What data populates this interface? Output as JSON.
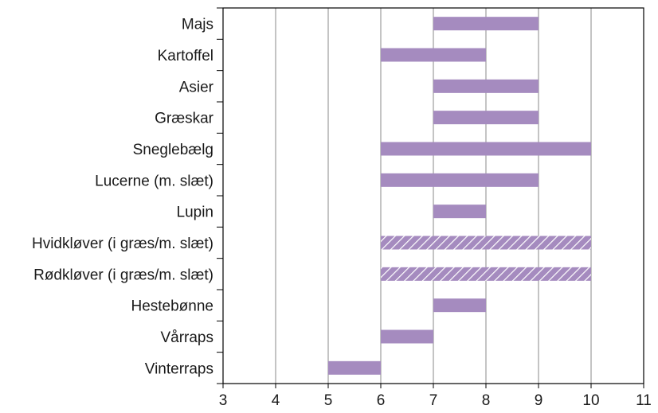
{
  "chart_data": {
    "type": "bar",
    "orientation": "horizontal",
    "title": "",
    "xlabel": "",
    "ylabel": "",
    "xlim": [
      3,
      11
    ],
    "x_ticks": [
      "3",
      "4",
      "5",
      "6",
      "7",
      "8",
      "9",
      "10",
      "11"
    ],
    "grid": "vertical",
    "legend": "none",
    "bar_color": "#a58bbf",
    "categories": [
      "Majs",
      "Kartoffel",
      "Asier",
      "Græskar",
      "Sneglebælg",
      "Lucerne (m. slæt)",
      "Lupin",
      "Hvidkløver (i græs/m. slæt)",
      "Rødkløver (i græs/m. slæt)",
      "Hestebønne",
      "Vårraps",
      "Vinterraps"
    ],
    "ranges": [
      {
        "start": 7,
        "end": 9,
        "pattern": "solid"
      },
      {
        "start": 6,
        "end": 8,
        "pattern": "solid"
      },
      {
        "start": 7,
        "end": 9,
        "pattern": "solid"
      },
      {
        "start": 7,
        "end": 9,
        "pattern": "solid"
      },
      {
        "start": 6,
        "end": 10,
        "pattern": "solid"
      },
      {
        "start": 6,
        "end": 9,
        "pattern": "solid"
      },
      {
        "start": 7,
        "end": 8,
        "pattern": "solid"
      },
      {
        "start": 6,
        "end": 10,
        "pattern": "hatched"
      },
      {
        "start": 6,
        "end": 10,
        "pattern": "hatched"
      },
      {
        "start": 7,
        "end": 8,
        "pattern": "solid"
      },
      {
        "start": 6,
        "end": 7,
        "pattern": "solid"
      },
      {
        "start": 5,
        "end": 6,
        "pattern": "solid"
      }
    ]
  }
}
